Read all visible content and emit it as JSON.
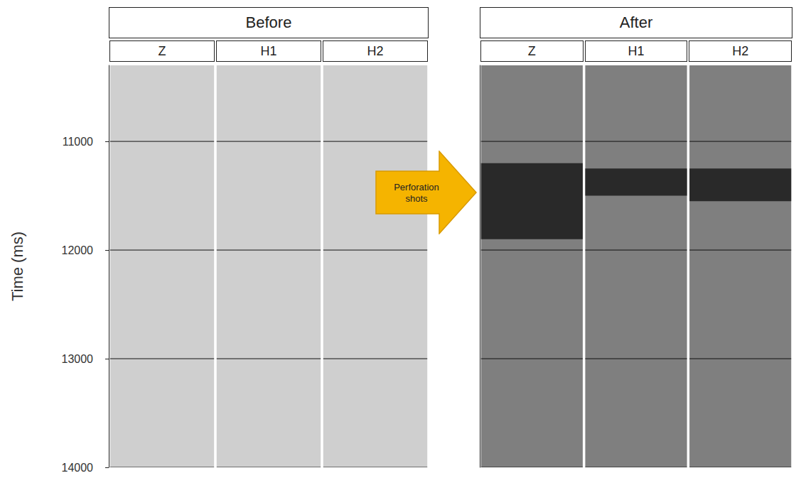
{
  "chart_data": {
    "type": "seismic",
    "ylabel": "Time (ms)",
    "ylim": [
      10300,
      14000
    ],
    "yticks": [
      11000,
      12000,
      13000,
      14000
    ],
    "grid": true,
    "tick_labels": "y",
    "annotation": "Perforation shots",
    "panels": [
      {
        "title": "Before",
        "components": [
          "Z",
          "H1",
          "H2"
        ],
        "color": "#cfcfcf",
        "arrivals": []
      },
      {
        "title": "After",
        "components": [
          "Z",
          "H1",
          "H2"
        ],
        "color": "#7f7f7f",
        "arrivals": [
          {
            "component": "Z",
            "start": 11200,
            "end": 11900,
            "color": "#1a1a1a"
          },
          {
            "component": "H1",
            "start": 11250,
            "end": 11500,
            "color": "#1a1a1a"
          },
          {
            "component": "H2",
            "start": 11250,
            "end": 11550,
            "color": "#1a1a1a"
          }
        ]
      }
    ]
  }
}
